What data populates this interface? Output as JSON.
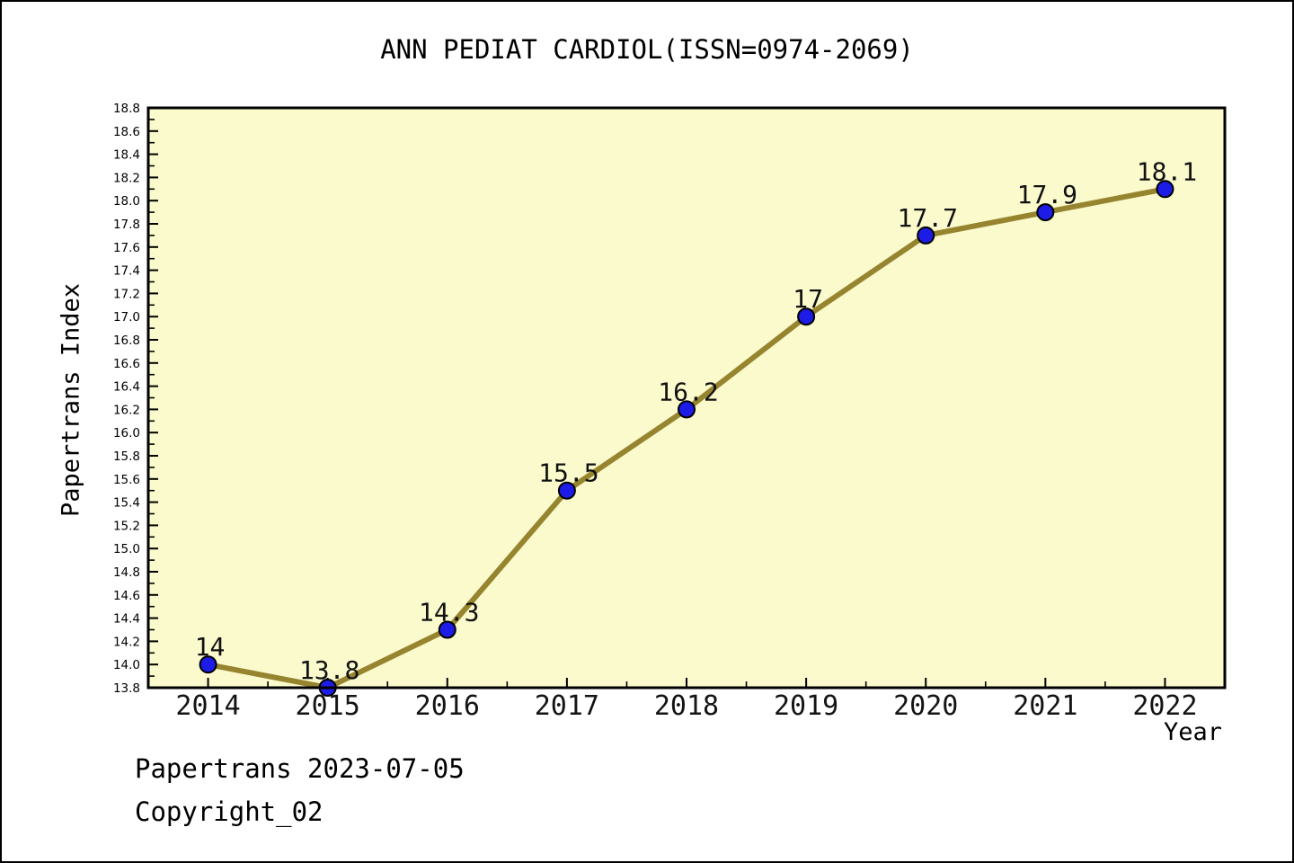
{
  "footer": {
    "line1": "Papertrans 2023-07-05",
    "line2": "Copyright_02"
  },
  "chart_data": {
    "type": "line",
    "title": "ANN PEDIAT CARDIOL(ISSN=0974-2069)",
    "xlabel": "Year",
    "ylabel": "Papertrans Index",
    "x": [
      2014,
      2015,
      2016,
      2017,
      2018,
      2019,
      2020,
      2021,
      2022
    ],
    "values": [
      14,
      13.8,
      14.3,
      15.5,
      16.2,
      17,
      17.7,
      17.9,
      18.1
    ],
    "point_labels": [
      "14",
      "13.8",
      "14.3",
      "15.5",
      "16.2",
      "17",
      "17.7",
      "17.9",
      "18.1"
    ],
    "xlim": [
      2013.5,
      2022.5
    ],
    "ylim": [
      13.8,
      18.8
    ],
    "y_tick_step": 0.2,
    "y_minor_step": 0.1,
    "x_tick_step": 1,
    "x_minor_step": 0.5,
    "grid": false,
    "legend": null,
    "colors": {
      "line": "#96842F",
      "marker": "#1C1CE6",
      "marker_edge": "#000000",
      "plot_bg": "#FAFACD",
      "axis": "#000000",
      "text": "#000000"
    }
  }
}
